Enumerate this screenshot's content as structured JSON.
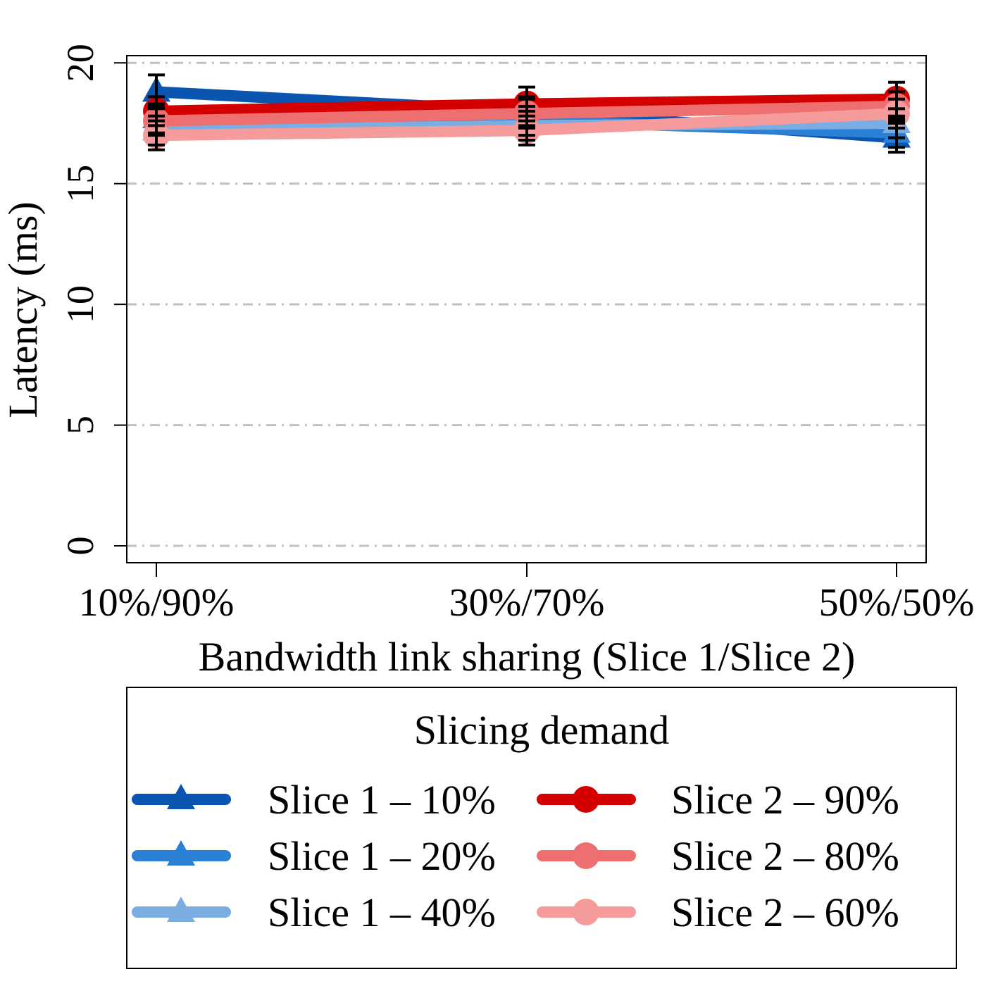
{
  "chart_data": {
    "type": "line",
    "xlabel": "Bandwidth link sharing (Slice 1/Slice 2)",
    "ylabel": "Latency (ms)",
    "categories": [
      "10%/90%",
      "30%/70%",
      "50%/50%"
    ],
    "ylim": [
      -0.7,
      20.3
    ],
    "yticks": [
      0,
      5,
      10,
      15,
      20
    ],
    "grid": "horizontal dashed",
    "series": [
      {
        "name": "Slice 1 – 10%",
        "color": "#0a55b0",
        "marker": "triangle",
        "values": [
          18.8,
          18.0,
          16.9
        ],
        "err": [
          0.7,
          0.6,
          0.6
        ]
      },
      {
        "name": "Slice 1 – 20%",
        "color": "#2b7fd4",
        "marker": "triangle",
        "values": [
          17.7,
          17.6,
          17.1
        ],
        "err": [
          0.6,
          0.6,
          0.6
        ]
      },
      {
        "name": "Slice 1 – 40%",
        "color": "#7aaee3",
        "marker": "triangle",
        "values": [
          17.2,
          17.4,
          17.5
        ],
        "err": [
          0.6,
          0.6,
          0.6
        ]
      },
      {
        "name": "Slice 2 – 90%",
        "color": "#d40000",
        "marker": "circle",
        "values": [
          18.0,
          18.3,
          18.5
        ],
        "err": [
          0.6,
          0.7,
          0.7
        ]
      },
      {
        "name": "Slice 2 – 80%",
        "color": "#ee6f6f",
        "marker": "circle",
        "values": [
          17.6,
          17.9,
          18.2
        ],
        "err": [
          0.6,
          0.6,
          0.6
        ]
      },
      {
        "name": "Slice 2 – 60%",
        "color": "#f59b9b",
        "marker": "circle",
        "values": [
          17.0,
          17.2,
          17.9
        ],
        "err": [
          0.6,
          0.6,
          0.6
        ]
      }
    ],
    "legend": {
      "title": "Slicing demand",
      "placement": "bottom"
    }
  }
}
